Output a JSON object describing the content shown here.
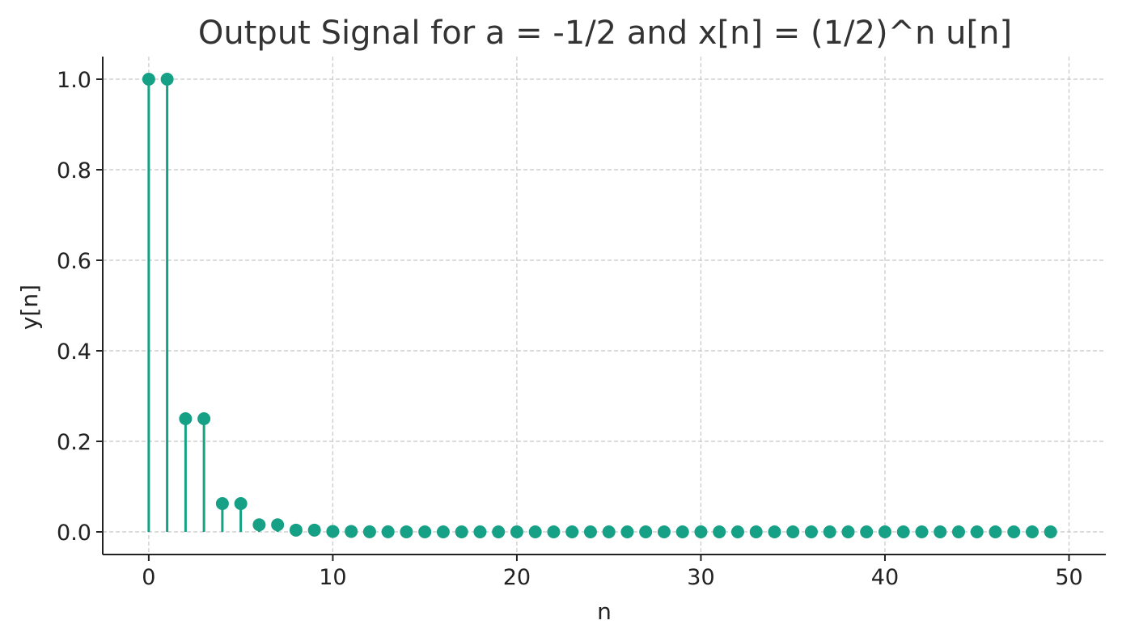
{
  "chart_data": {
    "type": "stem",
    "title": "Output Signal for a = -1/2 and x[n] = (1/2)^n u[n]",
    "xlabel": "n",
    "ylabel": "y[n]",
    "xlim": [
      -2.5,
      52
    ],
    "ylim": [
      -0.05,
      1.05
    ],
    "x_ticks": [
      0,
      10,
      20,
      30,
      40,
      50
    ],
    "x_tick_labels": [
      "0",
      "10",
      "20",
      "30",
      "40",
      "50"
    ],
    "y_ticks": [
      0.0,
      0.2,
      0.4,
      0.6,
      0.8,
      1.0
    ],
    "y_tick_labels": [
      "0.0",
      "0.2",
      "0.4",
      "0.6",
      "0.8",
      "1.0"
    ],
    "grid": true,
    "color": "#16a085",
    "series": [
      {
        "x": [
          0,
          1,
          2,
          3,
          4,
          5,
          6,
          7,
          8,
          9,
          10,
          11,
          12,
          13,
          14,
          15,
          16,
          17,
          18,
          19,
          20,
          21,
          22,
          23,
          24,
          25,
          26,
          27,
          28,
          29,
          30,
          31,
          32,
          33,
          34,
          35,
          36,
          37,
          38,
          39,
          40,
          41,
          42,
          43,
          44,
          45,
          46,
          47,
          48,
          49
        ],
        "values": [
          1.0,
          1.0,
          0.25,
          0.25,
          0.0625,
          0.0625,
          0.015625,
          0.015625,
          0.00390625,
          0.00390625,
          0.0009765625,
          0.0009765625,
          0.000244140625,
          0.000244140625,
          6.103515625e-05,
          6.103515625e-05,
          1.52587890625e-05,
          1.52587890625e-05,
          3.814697265625e-06,
          3.814697265625e-06,
          9.5367431640625e-07,
          9.5367431640625e-07,
          2.384185791015625e-07,
          2.384185791015625e-07,
          5.960464477539063e-08,
          5.960464477539063e-08,
          1.4901161193847656e-08,
          1.4901161193847656e-08,
          3.725290298461914e-09,
          3.725290298461914e-09,
          0.0,
          0.0,
          0.0,
          0.0,
          0.0,
          0.0,
          0.0,
          0.0,
          0.0,
          0.0,
          0.0,
          0.0,
          0.0,
          0.0,
          0.0,
          0.0,
          0.0,
          0.0,
          0.0,
          0.0
        ]
      }
    ]
  }
}
